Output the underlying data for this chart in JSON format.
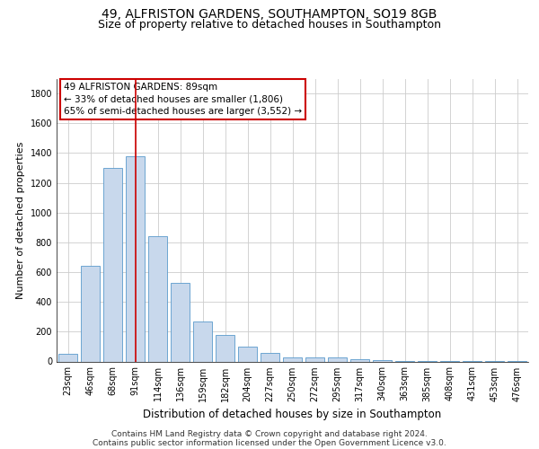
{
  "title1": "49, ALFRISTON GARDENS, SOUTHAMPTON, SO19 8GB",
  "title2": "Size of property relative to detached houses in Southampton",
  "xlabel": "Distribution of detached houses by size in Southampton",
  "ylabel": "Number of detached properties",
  "categories": [
    "23sqm",
    "46sqm",
    "68sqm",
    "91sqm",
    "114sqm",
    "136sqm",
    "159sqm",
    "182sqm",
    "204sqm",
    "227sqm",
    "250sqm",
    "272sqm",
    "295sqm",
    "317sqm",
    "340sqm",
    "363sqm",
    "385sqm",
    "408sqm",
    "431sqm",
    "453sqm",
    "476sqm"
  ],
  "values": [
    50,
    640,
    1300,
    1380,
    840,
    525,
    270,
    175,
    100,
    60,
    30,
    30,
    25,
    15,
    10,
    6,
    5,
    3,
    2,
    2,
    2
  ],
  "bar_color": "#c8d8ec",
  "bar_edge_color": "#5a9acc",
  "vline_x_index": 3,
  "vline_color": "#cc0000",
  "ylim": [
    0,
    1900
  ],
  "yticks": [
    0,
    200,
    400,
    600,
    800,
    1000,
    1200,
    1400,
    1600,
    1800
  ],
  "annotation_box_text": "49 ALFRISTON GARDENS: 89sqm\n← 33% of detached houses are smaller (1,806)\n65% of semi-detached houses are larger (3,552) →",
  "footer1": "Contains HM Land Registry data © Crown copyright and database right 2024.",
  "footer2": "Contains public sector information licensed under the Open Government Licence v3.0.",
  "background_color": "#ffffff",
  "grid_color": "#cccccc",
  "title1_fontsize": 10,
  "title2_fontsize": 9,
  "xlabel_fontsize": 8.5,
  "ylabel_fontsize": 8,
  "tick_fontsize": 7,
  "annotation_fontsize": 7.5,
  "footer_fontsize": 6.5
}
